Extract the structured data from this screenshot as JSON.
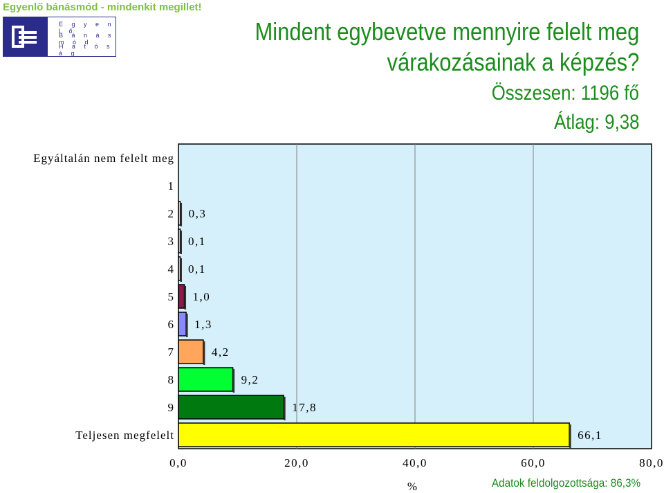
{
  "header": {
    "tagline": "Egyenlő bánásmód - mindenkit megillet!",
    "logo_lines": [
      "E g y e n l ő",
      "B á n á s m ó d",
      "H a t ó s á g"
    ]
  },
  "colors": {
    "title": "#1c8c1c",
    "tagline": "#7fbf3f",
    "logo": "#2b2b8a",
    "plot_background": "#d6f0fb"
  },
  "footnote": "Adatok feldolgozottsága: 86,3%",
  "chart_data": {
    "type": "bar",
    "orientation": "horizontal",
    "title_lines": [
      "Mindent egybevetve mennyire felelt meg",
      "várakozásainak a képzés?"
    ],
    "subtitle_lines": [
      "Összesen: 1196 fő",
      "Átlag: 9,38"
    ],
    "categories": [
      "Egyáltalán nem felelt meg",
      "1",
      "2",
      "3",
      "4",
      "5",
      "6",
      "7",
      "8",
      "9",
      "Teljesen megfelelt"
    ],
    "values": [
      0,
      0,
      0.3,
      0.1,
      0.1,
      1.0,
      1.3,
      4.2,
      9.2,
      17.8,
      66.1
    ],
    "value_labels": [
      "",
      "",
      "0,3",
      "0,1",
      "0,1",
      "1,0",
      "1,3",
      "4,2",
      "9,2",
      "17,8",
      "66,1"
    ],
    "bar_colors": [
      "#ffffff",
      "#ffffff",
      "#ffffff",
      "#ffffff",
      "#ffffff",
      "#8b1a4a",
      "#8888ff",
      "#ffa65c",
      "#00ff33",
      "#007a0f",
      "#ffff00"
    ],
    "x_ticks": [
      0,
      20,
      40,
      60,
      80
    ],
    "x_tick_labels": [
      "0,0",
      "20,0",
      "40,0",
      "60,0",
      "80,0"
    ],
    "xlabel": "%",
    "xlim": [
      0,
      80
    ],
    "grid": true,
    "legend": false
  }
}
